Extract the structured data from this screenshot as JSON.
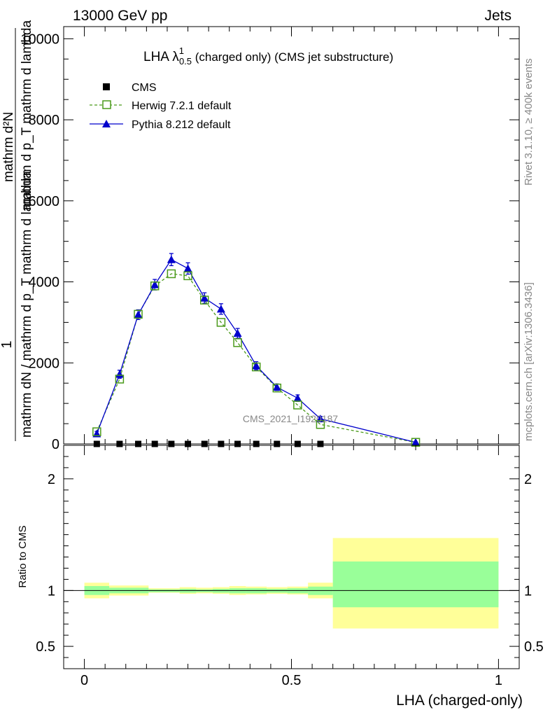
{
  "header": {
    "left": "13000 GeV pp",
    "right": "Jets"
  },
  "side_labels": {
    "rivet": "Rivet 3.1.10, ≥ 400k events",
    "mcplots": "mcplots.cern.ch [arXiv:1306.3436]"
  },
  "chart_data": [
    {
      "type": "line",
      "title_main": "LHA λ",
      "title_sup": "1",
      "title_sub": "0.5",
      "title_rest": " (charged only) (CMS jet substructure)",
      "watermark": "CMS_2021_I1920187",
      "ylabel_numerator": "1",
      "ylabel_denominator": "mathrm dN / mathrm d p_T mathrm d lambda",
      "ylabel_right_lines": [
        "mathrm d²N",
        "mathrm d p_T mathrm d lambda"
      ],
      "xlim": [
        -0.05,
        1.05
      ],
      "ylim": [
        0,
        10300
      ],
      "y_ticks": [
        0,
        2000,
        4000,
        6000,
        8000,
        10000
      ],
      "y_tick_labels": [
        "0",
        "2000",
        "4000",
        "6000",
        "8000",
        "10000"
      ],
      "legend": [
        "CMS",
        "Herwig 7.2.1 default",
        "Pythia 8.212 default"
      ],
      "colors": {
        "cms": "#000000",
        "herwig": "#4a9a1a",
        "pythia": "#0000cc"
      },
      "series": [
        {
          "name": "CMS",
          "marker": "square-filled",
          "x": [
            0.03,
            0.085,
            0.13,
            0.17,
            0.21,
            0.25,
            0.29,
            0.33,
            0.37,
            0.415,
            0.465,
            0.515,
            0.57
          ],
          "y": [
            0,
            0,
            0,
            0,
            0,
            0,
            0,
            0,
            0,
            0,
            0,
            0,
            0
          ],
          "err": [
            0,
            0,
            0,
            0,
            0,
            0,
            0,
            0,
            0,
            0,
            0,
            0,
            0
          ]
        },
        {
          "name": "Herwig 7.2.1 default",
          "marker": "square-open",
          "line": "dashed",
          "x": [
            0.03,
            0.085,
            0.13,
            0.17,
            0.21,
            0.25,
            0.29,
            0.33,
            0.37,
            0.415,
            0.465,
            0.515,
            0.57,
            0.8
          ],
          "y": [
            300,
            1600,
            3200,
            3900,
            4200,
            4150,
            3550,
            3000,
            2500,
            1900,
            1380,
            960,
            480,
            40
          ],
          "err": [
            0,
            0,
            0,
            0,
            0,
            0,
            0,
            0,
            0,
            0,
            0,
            0,
            0,
            0
          ]
        },
        {
          "name": "Pythia 8.212 default",
          "marker": "triangle-filled",
          "line": "solid",
          "x": [
            0.03,
            0.085,
            0.13,
            0.17,
            0.21,
            0.25,
            0.29,
            0.33,
            0.37,
            0.415,
            0.465,
            0.515,
            0.57,
            0.8
          ],
          "y": [
            250,
            1720,
            3190,
            3930,
            4550,
            4330,
            3600,
            3330,
            2730,
            1930,
            1400,
            1130,
            620,
            40
          ],
          "err": [
            60,
            100,
            120,
            130,
            150,
            140,
            130,
            130,
            120,
            100,
            80,
            80,
            60,
            10
          ]
        }
      ]
    },
    {
      "type": "area",
      "ylabel": "Ratio to CMS",
      "xlabel": "LHA (charged-only)",
      "xlim": [
        -0.05,
        1.05
      ],
      "ylim": [
        0.3,
        2.3
      ],
      "y_ticks": [
        0.5,
        1,
        2
      ],
      "y_tick_labels": [
        "0.5",
        "1",
        "2"
      ],
      "x_ticks": [
        0,
        0.5,
        1
      ],
      "x_tick_labels": [
        "0",
        "0.5",
        "1"
      ],
      "reference": 1,
      "colors": {
        "stat": "#99ff99",
        "total": "#ffff99"
      },
      "bins": [
        {
          "lo": 0.0,
          "hi": 0.06,
          "stat": [
            0.96,
            1.04
          ],
          "total": [
            0.93,
            1.07
          ]
        },
        {
          "lo": 0.06,
          "hi": 0.155,
          "stat": [
            0.975,
            1.025
          ],
          "total": [
            0.955,
            1.045
          ]
        },
        {
          "lo": 0.155,
          "hi": 0.23,
          "stat": [
            0.985,
            1.01
          ],
          "total": [
            0.98,
            1.02
          ]
        },
        {
          "lo": 0.23,
          "hi": 0.27,
          "stat": [
            0.98,
            1.015
          ],
          "total": [
            0.97,
            1.03
          ]
        },
        {
          "lo": 0.27,
          "hi": 0.31,
          "stat": [
            0.985,
            1.01
          ],
          "total": [
            0.975,
            1.025
          ]
        },
        {
          "lo": 0.31,
          "hi": 0.35,
          "stat": [
            0.98,
            1.015
          ],
          "total": [
            0.97,
            1.03
          ]
        },
        {
          "lo": 0.35,
          "hi": 0.39,
          "stat": [
            0.975,
            1.02
          ],
          "total": [
            0.96,
            1.04
          ]
        },
        {
          "lo": 0.39,
          "hi": 0.44,
          "stat": [
            0.975,
            1.02
          ],
          "total": [
            0.965,
            1.035
          ]
        },
        {
          "lo": 0.44,
          "hi": 0.49,
          "stat": [
            0.98,
            1.015
          ],
          "total": [
            0.97,
            1.03
          ]
        },
        {
          "lo": 0.49,
          "hi": 0.54,
          "stat": [
            0.975,
            1.02
          ],
          "total": [
            0.965,
            1.035
          ]
        },
        {
          "lo": 0.54,
          "hi": 0.6,
          "stat": [
            0.96,
            1.035
          ],
          "total": [
            0.93,
            1.07
          ]
        },
        {
          "lo": 0.6,
          "hi": 1.0,
          "stat": [
            0.85,
            1.26
          ],
          "total": [
            0.66,
            1.47
          ]
        }
      ]
    }
  ]
}
